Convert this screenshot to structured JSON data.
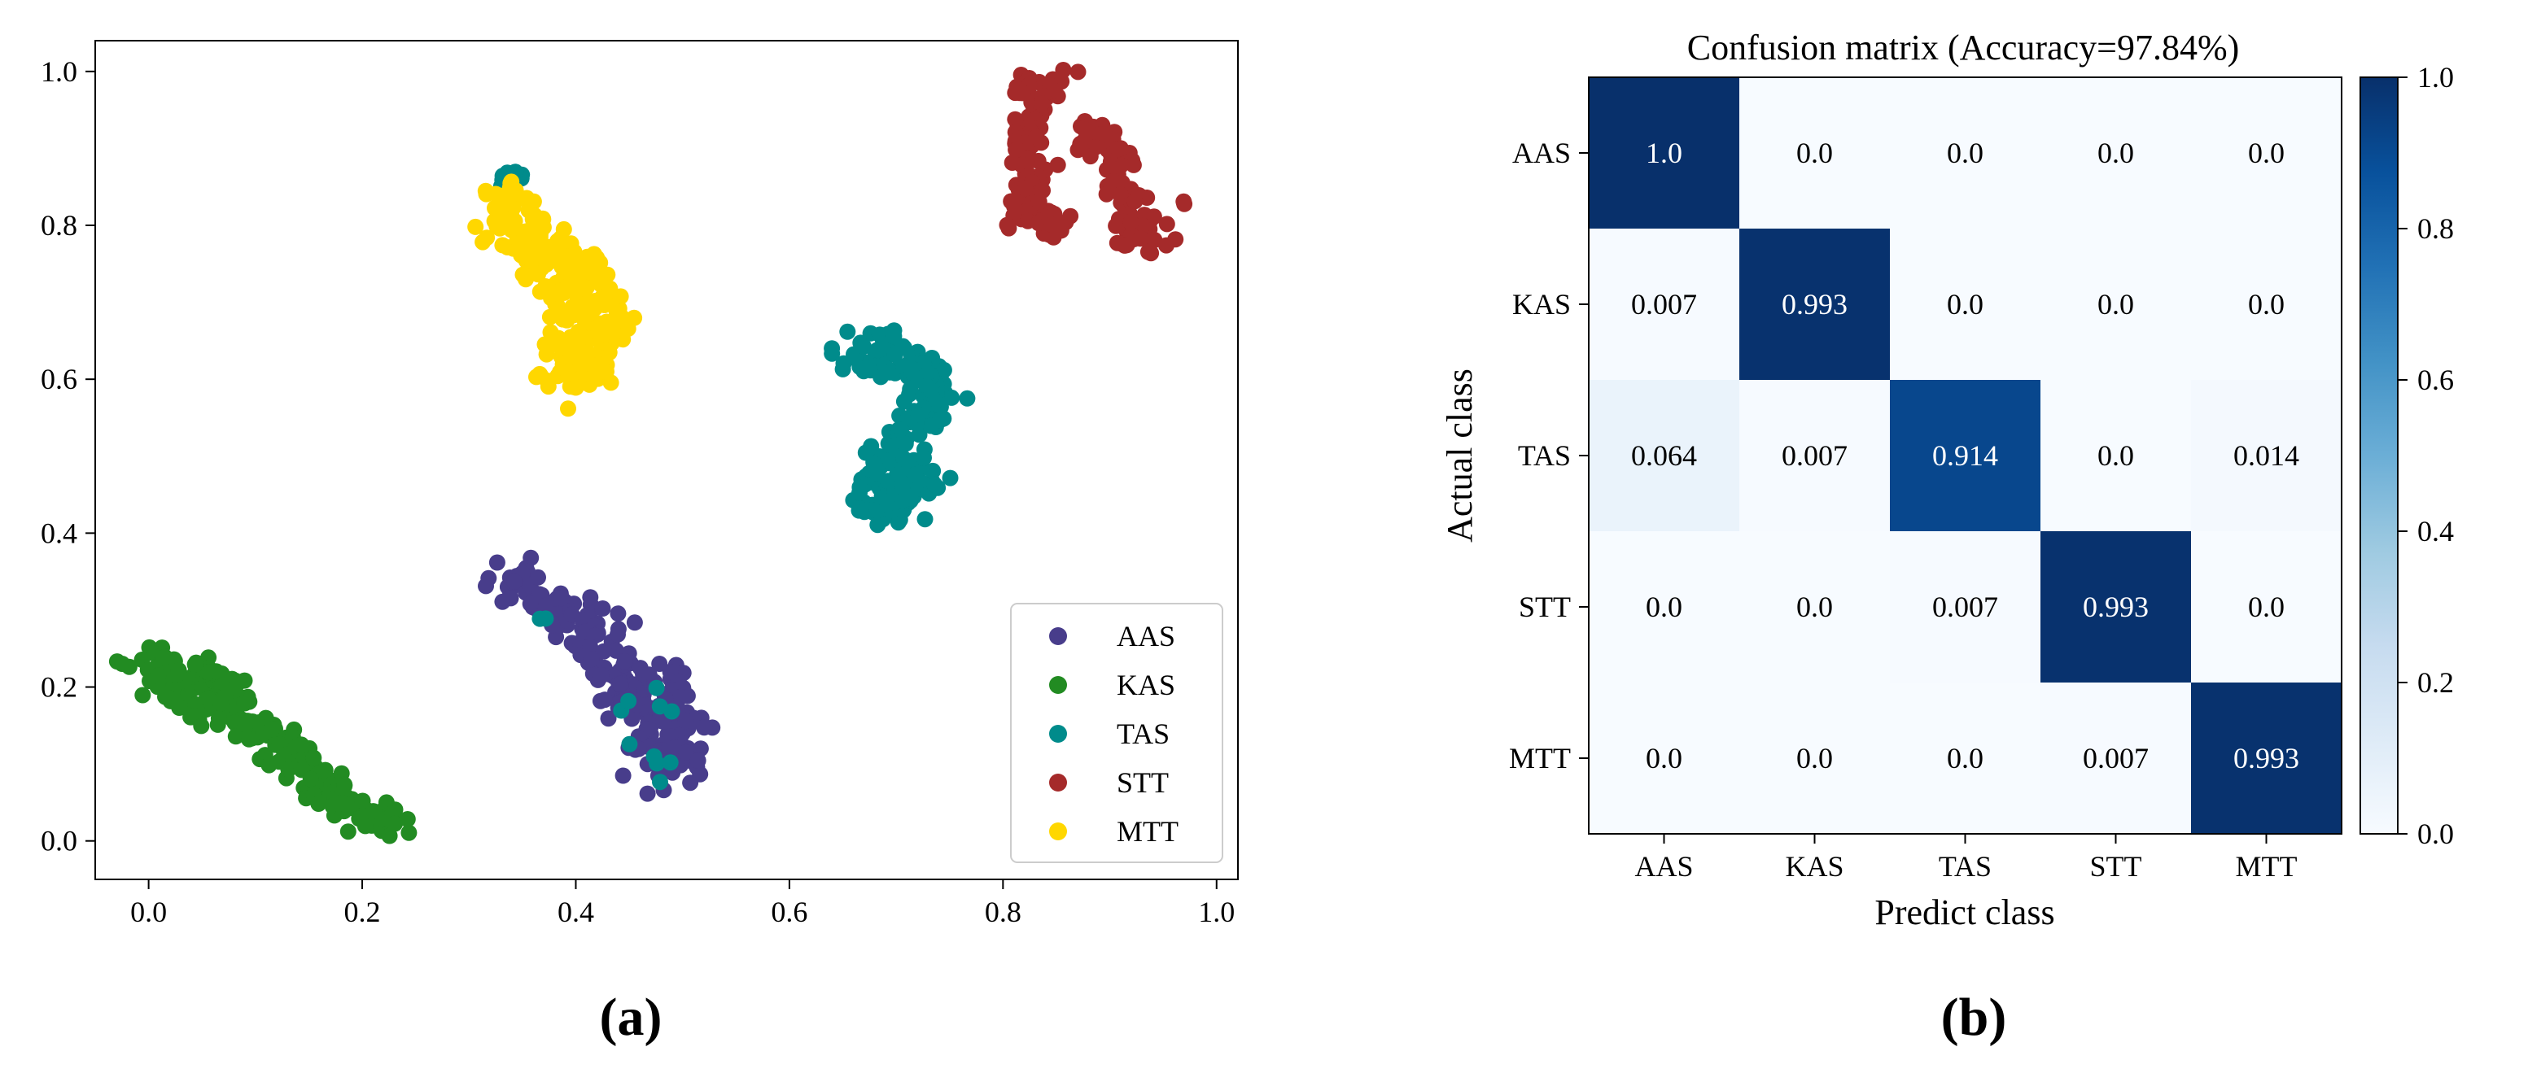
{
  "chart_data": [
    {
      "type": "scatter",
      "panel_label": "(a)",
      "xlim": [
        -0.05,
        1.02
      ],
      "ylim": [
        -0.05,
        1.04
      ],
      "xticks": [
        "0.0",
        "0.2",
        "0.4",
        "0.6",
        "0.8",
        "1.0"
      ],
      "yticks": [
        "0.0",
        "0.2",
        "0.4",
        "0.6",
        "0.8",
        "1.0"
      ],
      "xtick_values": [
        0,
        0.2,
        0.4,
        0.6,
        0.8,
        1.0
      ],
      "ytick_values": [
        0,
        0.2,
        0.4,
        0.6,
        0.8,
        1.0
      ],
      "legend_position": "lower-right",
      "series": [
        {
          "name": "AAS",
          "color": "#483d8b",
          "clusters": [
            {
              "path": [
                [
                  0.33,
                  0.36
                ],
                [
                  0.36,
                  0.32
                ],
                [
                  0.39,
                  0.3
                ],
                [
                  0.42,
                  0.27
                ],
                [
                  0.43,
                  0.22
                ],
                [
                  0.45,
                  0.19
                ],
                [
                  0.47,
                  0.16
                ],
                [
                  0.48,
                  0.12
                ],
                [
                  0.49,
                  0.09
                ]
              ],
              "spread": 0.016,
              "count": 170
            },
            {
              "path": [
                [
                  0.45,
                  0.22
                ],
                [
                  0.49,
                  0.21
                ],
                [
                  0.5,
                  0.15
                ],
                [
                  0.51,
                  0.09
                ]
              ],
              "spread": 0.012,
              "count": 60
            }
          ]
        },
        {
          "name": "KAS",
          "color": "#228b22",
          "clusters": [
            {
              "path": [
                [
                  0.0,
                  0.235
                ],
                [
                  0.03,
                  0.2
                ],
                [
                  0.07,
                  0.17
                ],
                [
                  0.11,
                  0.14
                ],
                [
                  0.15,
                  0.09
                ],
                [
                  0.19,
                  0.05
                ],
                [
                  0.23,
                  0.015
                ]
              ],
              "spread": 0.013,
              "count": 200
            },
            {
              "path": [
                [
                  0.02,
                  0.22
                ],
                [
                  0.07,
                  0.22
                ],
                [
                  0.08,
                  0.19
                ]
              ],
              "spread": 0.01,
              "count": 45
            }
          ]
        },
        {
          "name": "TAS",
          "color": "#008b8b",
          "clusters": [
            {
              "path": [
                [
                  0.66,
                  0.62
                ],
                [
                  0.69,
                  0.65
                ],
                [
                  0.71,
                  0.61
                ],
                [
                  0.73,
                  0.6
                ],
                [
                  0.74,
                  0.58
                ],
                [
                  0.71,
                  0.53
                ],
                [
                  0.69,
                  0.49
                ],
                [
                  0.68,
                  0.45
                ],
                [
                  0.69,
                  0.42
                ],
                [
                  0.71,
                  0.46
                ],
                [
                  0.73,
                  0.47
                ]
              ],
              "spread": 0.013,
              "count": 230
            },
            {
              "path": [
                [
                  0.335,
                  0.86
                ],
                [
                  0.345,
                  0.865
                ]
              ],
              "spread": 0.004,
              "count": 8
            },
            {
              "path": [
                [
                  0.44,
                  0.17
                ],
                [
                  0.47,
                  0.18
                ],
                [
                  0.49,
                  0.2
                ],
                [
                  0.47,
                  0.07
                ],
                [
                  0.5,
                  0.1
                ],
                [
                  0.45,
                  0.13
                ]
              ],
              "spread": 0.006,
              "count": 10
            },
            {
              "path": [
                [
                  0.37,
                  0.29
                ],
                [
                  0.37,
                  0.29
                ]
              ],
              "spread": 0.002,
              "count": 2
            }
          ]
        },
        {
          "name": "STT",
          "color": "#a52a2a",
          "clusters": [
            {
              "path": [
                [
                  0.84,
                  1.0
                ],
                [
                  0.83,
                  0.96
                ],
                [
                  0.82,
                  0.9
                ],
                [
                  0.83,
                  0.85
                ],
                [
                  0.82,
                  0.81
                ],
                [
                  0.85,
                  0.8
                ]
              ],
              "spread": 0.011,
              "count": 110
            },
            {
              "path": [
                [
                  0.88,
                  0.93
                ],
                [
                  0.9,
                  0.9
                ],
                [
                  0.91,
                  0.85
                ],
                [
                  0.93,
                  0.8
                ],
                [
                  0.935,
                  0.77
                ]
              ],
              "spread": 0.011,
              "count": 100
            },
            {
              "path": [
                [
                  0.97,
                  0.83
                ],
                [
                  0.97,
                  0.83
                ]
              ],
              "spread": 0.002,
              "count": 2
            }
          ]
        },
        {
          "name": "MTT",
          "color": "#ffd700",
          "clusters": [
            {
              "path": [
                [
                  0.33,
                  0.84
                ],
                [
                  0.34,
                  0.8
                ],
                [
                  0.36,
                  0.76
                ],
                [
                  0.38,
                  0.74
                ],
                [
                  0.4,
                  0.7
                ],
                [
                  0.41,
                  0.66
                ],
                [
                  0.4,
                  0.61
                ],
                [
                  0.39,
                  0.59
                ]
              ],
              "spread": 0.016,
              "count": 190
            },
            {
              "path": [
                [
                  0.35,
                  0.78
                ],
                [
                  0.4,
                  0.76
                ],
                [
                  0.42,
                  0.72
                ],
                [
                  0.43,
                  0.67
                ],
                [
                  0.42,
                  0.63
                ]
              ],
              "spread": 0.013,
              "count": 90
            }
          ]
        }
      ]
    },
    {
      "type": "heatmap",
      "panel_label": "(b)",
      "title": "Confusion matrix (Accuracy=97.84%)",
      "xlabel": "Predict class",
      "ylabel": "Actual class",
      "categories": [
        "AAS",
        "KAS",
        "TAS",
        "STT",
        "MTT"
      ],
      "values": [
        [
          1.0,
          0.0,
          0.0,
          0.0,
          0.0
        ],
        [
          0.007,
          0.993,
          0.0,
          0.0,
          0.0
        ],
        [
          0.064,
          0.007,
          0.914,
          0.0,
          0.014
        ],
        [
          0.0,
          0.0,
          0.007,
          0.993,
          0.0
        ],
        [
          0.0,
          0.0,
          0.0,
          0.007,
          0.993
        ]
      ],
      "labels": [
        [
          "1.0",
          "0.0",
          "0.0",
          "0.0",
          "0.0"
        ],
        [
          "0.007",
          "0.993",
          "0.0",
          "0.0",
          "0.0"
        ],
        [
          "0.064",
          "0.007",
          "0.914",
          "0.0",
          "0.014"
        ],
        [
          "0.0",
          "0.0",
          "0.007",
          "0.993",
          "0.0"
        ],
        [
          "0.0",
          "0.0",
          "0.0",
          "0.007",
          "0.993"
        ]
      ],
      "colorbar": {
        "range": [
          0.0,
          1.0
        ],
        "ticks": [
          "0.0",
          "0.2",
          "0.4",
          "0.6",
          "0.8",
          "1.0"
        ],
        "tick_values": [
          0,
          0.2,
          0.4,
          0.6,
          0.8,
          1.0
        ],
        "colormap": "Blues",
        "low_color": "#f7fbff",
        "high_color": "#08306b"
      }
    }
  ]
}
